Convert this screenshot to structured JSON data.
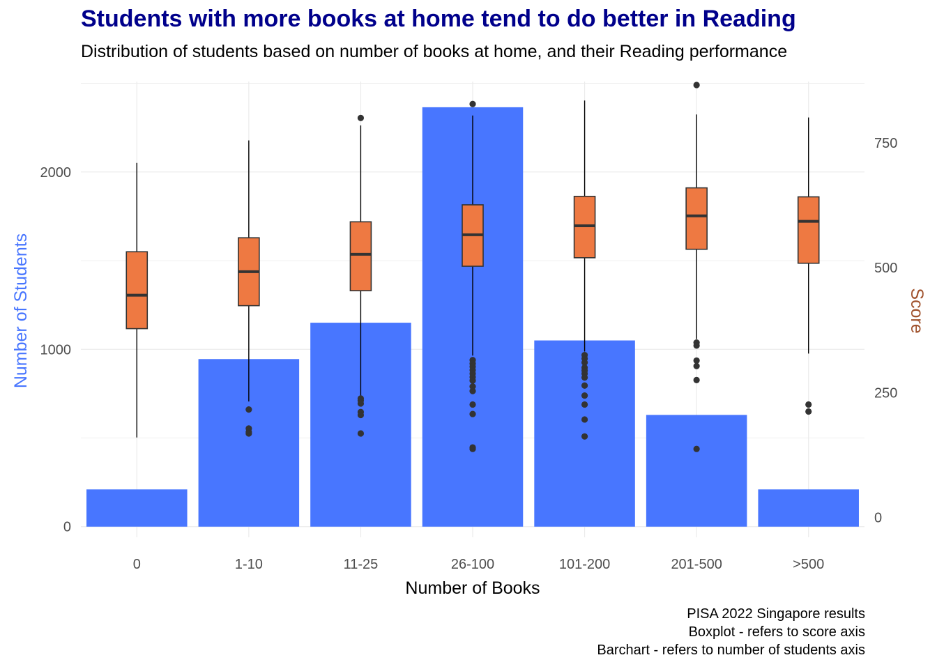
{
  "title": "Students with more books at home tend to do better in Reading",
  "subtitle": "Distribution of students based on number of books at home, and their Reading performance",
  "caption": [
    "PISA 2022 Singapore results",
    "Boxplot - refers to score axis",
    "Barchart - refers to number of students axis"
  ],
  "colors": {
    "title": "#00008b",
    "bar": "#4876ff",
    "box": "#ee7942",
    "box_line": "#333333",
    "left_axis_title": "#4876ff",
    "right_axis_title": "#a0522d",
    "grid": "#ebebeb",
    "tick_text": "#4d4d4d"
  },
  "chart_data": {
    "type": "bar",
    "overlay": "boxplot",
    "grid": true,
    "xlabel": "Number of Books",
    "ylabel": "Number of Students",
    "y2label": "Score",
    "categories": [
      "0",
      "1-10",
      "11-25",
      "26-100",
      "101-200",
      "201-500",
      ">500"
    ],
    "ylim": [
      -60,
      2510
    ],
    "yticks": [
      0,
      1000,
      2000
    ],
    "y2lim": [
      -40,
      873
    ],
    "y2ticks": [
      0,
      250,
      500,
      750
    ],
    "bars": {
      "name": "Number of Students",
      "axis": "left",
      "values": [
        210,
        945,
        1150,
        2365,
        1050,
        630,
        210
      ]
    },
    "boxplots": {
      "name": "Score",
      "axis": "right",
      "series": [
        {
          "category": "0",
          "whisker_low": 160,
          "q1": 378,
          "median": 445,
          "q3": 532,
          "whisker_high": 710,
          "outliers": []
        },
        {
          "category": "1-10",
          "whisker_low": 232,
          "q1": 424,
          "median": 492,
          "q3": 560,
          "whisker_high": 755,
          "outliers": [
            216,
            178,
            171,
            168
          ]
        },
        {
          "category": "11-25",
          "whisker_low": 243,
          "q1": 454,
          "median": 527,
          "q3": 592,
          "whisker_high": 785,
          "outliers": [
            800,
            238,
            234,
            228,
            211,
            205,
            168
          ]
        },
        {
          "category": "26-100",
          "whisker_low": 324,
          "q1": 503,
          "median": 566,
          "q3": 626,
          "whisker_high": 805,
          "outliers": [
            828,
            315,
            308,
            302,
            295,
            288,
            281,
            274,
            262,
            253,
            226,
            207,
            140,
            137
          ]
        },
        {
          "category": "101-200",
          "whisker_low": 332,
          "q1": 520,
          "median": 584,
          "q3": 643,
          "whisker_high": 835,
          "outliers": [
            325,
            318,
            310,
            300,
            294,
            288,
            280,
            264,
            244,
            226,
            196,
            162
          ]
        },
        {
          "category": "201-500",
          "whisker_low": 357,
          "q1": 537,
          "median": 604,
          "q3": 660,
          "whisker_high": 807,
          "outliers": [
            866,
            350,
            344,
            314,
            303,
            275,
            137
          ]
        },
        {
          "category": ">500",
          "whisker_low": 328,
          "q1": 509,
          "median": 593,
          "q3": 642,
          "whisker_high": 801,
          "outliers": [
            226,
            212
          ]
        }
      ]
    }
  }
}
